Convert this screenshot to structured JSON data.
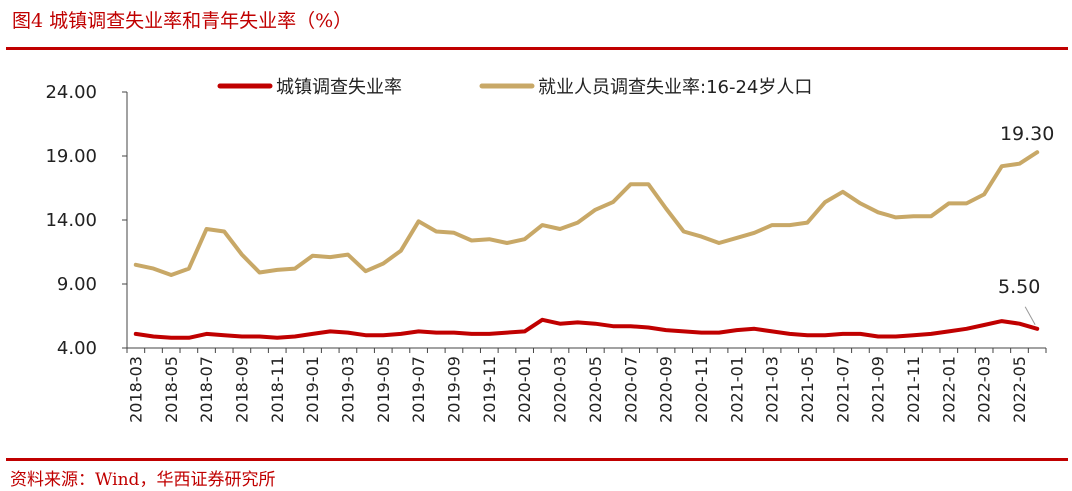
{
  "header": {
    "title": "图4 城镇调查失业率和青年失业率（%）"
  },
  "footer": {
    "source": "资料来源：Wind，华西证券研究所"
  },
  "colors": {
    "accent": "#c00000",
    "series_urban": "#c00000",
    "series_youth": "#c8a867"
  },
  "chart_data": {
    "type": "line",
    "x": [
      "2018-03",
      "2018-04",
      "2018-05",
      "2018-06",
      "2018-07",
      "2018-08",
      "2018-09",
      "2018-10",
      "2018-11",
      "2018-12",
      "2019-01",
      "2019-02",
      "2019-03",
      "2019-04",
      "2019-05",
      "2019-06",
      "2019-07",
      "2019-08",
      "2019-09",
      "2019-10",
      "2019-11",
      "2019-12",
      "2020-01",
      "2020-02",
      "2020-03",
      "2020-04",
      "2020-05",
      "2020-06",
      "2020-07",
      "2020-08",
      "2020-09",
      "2020-10",
      "2020-11",
      "2020-12",
      "2021-01",
      "2021-02",
      "2021-03",
      "2021-04",
      "2021-05",
      "2021-06",
      "2021-07",
      "2021-08",
      "2021-09",
      "2021-10",
      "2021-11",
      "2021-12",
      "2022-01",
      "2022-02",
      "2022-03",
      "2022-04",
      "2022-05",
      "2022-06"
    ],
    "tick_labels": [
      "2018-03",
      "2018-05",
      "2018-07",
      "2018-09",
      "2018-11",
      "2019-01",
      "2019-03",
      "2019-05",
      "2019-07",
      "2019-09",
      "2019-11",
      "2020-01",
      "2020-03",
      "2020-05",
      "2020-07",
      "2020-09",
      "2020-11",
      "2021-01",
      "2021-03",
      "2021-05",
      "2021-07",
      "2021-09",
      "2021-11",
      "2022-01",
      "2022-03",
      "2022-05"
    ],
    "y_ticks": [
      "4.00",
      "9.00",
      "14.00",
      "19.00",
      "24.00"
    ],
    "ylim": [
      4,
      24
    ],
    "series": [
      {
        "name": "城镇调查失业率",
        "color_key": "series_urban",
        "values": [
          5.1,
          4.9,
          4.8,
          4.8,
          5.1,
          5.0,
          4.9,
          4.9,
          4.8,
          4.9,
          5.1,
          5.3,
          5.2,
          5.0,
          5.0,
          5.1,
          5.3,
          5.2,
          5.2,
          5.1,
          5.1,
          5.2,
          5.3,
          6.2,
          5.9,
          6.0,
          5.9,
          5.7,
          5.7,
          5.6,
          5.4,
          5.3,
          5.2,
          5.2,
          5.4,
          5.5,
          5.3,
          5.1,
          5.0,
          5.0,
          5.1,
          5.1,
          4.9,
          4.9,
          5.0,
          5.1,
          5.3,
          5.5,
          5.8,
          6.1,
          5.9,
          5.5
        ]
      },
      {
        "name": "就业人员调查失业率:16-24岁人口",
        "color_key": "series_youth",
        "values": [
          10.5,
          10.2,
          9.7,
          10.2,
          13.3,
          13.1,
          11.3,
          9.9,
          10.1,
          10.2,
          11.2,
          11.1,
          11.3,
          10.0,
          10.6,
          11.6,
          13.9,
          13.1,
          13.0,
          12.4,
          12.5,
          12.2,
          12.5,
          13.6,
          13.3,
          13.8,
          14.8,
          15.4,
          16.8,
          16.8,
          14.9,
          13.1,
          12.7,
          12.2,
          12.6,
          13.0,
          13.6,
          13.6,
          13.8,
          15.4,
          16.2,
          15.3,
          14.6,
          14.2,
          14.3,
          14.3,
          15.3,
          15.3,
          16.0,
          18.2,
          18.4,
          19.3
        ]
      }
    ],
    "annotations": [
      {
        "text": "19.30",
        "series": 1,
        "index": 51
      },
      {
        "text": "5.50",
        "series": 0,
        "index": 51
      }
    ],
    "legend_position": "top",
    "grid": false
  }
}
